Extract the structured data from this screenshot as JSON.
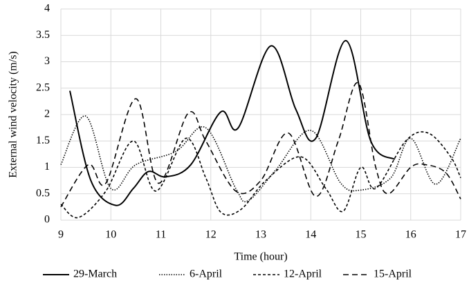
{
  "chart_data": {
    "type": "line",
    "xlabel": "Time (hour)",
    "ylabel": "External wind velocity (m/s)",
    "xlim": [
      9,
      17
    ],
    "xticks": [
      9,
      10,
      11,
      12,
      13,
      14,
      15,
      16,
      17
    ],
    "ylim": [
      0,
      4
    ],
    "yticks": [
      0,
      0.5,
      1,
      1.5,
      2,
      2.5,
      3,
      3.5,
      4
    ],
    "grid": true,
    "legend": "bottom",
    "series": [
      {
        "name": "29-March",
        "color": "#000000",
        "dash": "solid",
        "x": [
          9.18,
          9.6,
          10.1,
          10.45,
          10.75,
          11.1,
          11.6,
          12.2,
          12.55,
          13.2,
          13.7,
          14.1,
          14.7,
          15.2,
          15.68
        ],
        "values": [
          2.45,
          0.75,
          0.28,
          0.6,
          0.92,
          0.82,
          1.05,
          2.05,
          1.75,
          3.3,
          2.1,
          1.55,
          3.4,
          1.5,
          1.15
        ]
      },
      {
        "name": "6-April",
        "color": "#000000",
        "dash": "dotted",
        "x": [
          9,
          9.5,
          10.0,
          10.5,
          11.3,
          11.9,
          12.5,
          12.75,
          13.3,
          14.0,
          14.6,
          15.0,
          15.6,
          16.0,
          16.5,
          17.0
        ],
        "values": [
          1.05,
          1.97,
          0.6,
          1.05,
          1.3,
          1.75,
          0.6,
          0.37,
          0.95,
          1.7,
          0.7,
          0.57,
          0.8,
          1.55,
          0.68,
          1.55
        ]
      },
      {
        "name": "12-April",
        "color": "#000000",
        "dash": "dashed",
        "x": [
          9,
          9.35,
          9.9,
          10.45,
          10.9,
          11.5,
          11.9,
          12.2,
          12.6,
          13.1,
          13.8,
          14.3,
          14.65,
          15.0,
          15.3,
          15.9,
          16.35,
          16.8,
          17.0
        ],
        "values": [
          0.3,
          0.05,
          0.55,
          1.5,
          0.55,
          1.55,
          0.8,
          0.15,
          0.2,
          0.75,
          1.2,
          0.6,
          0.17,
          1.0,
          0.6,
          1.5,
          1.65,
          1.2,
          0.8
        ]
      },
      {
        "name": "15-April",
        "color": "#000000",
        "dash": "long-dashed",
        "x": [
          9,
          9.55,
          9.9,
          10.5,
          10.95,
          11.55,
          11.9,
          12.5,
          13.0,
          13.55,
          14.1,
          14.55,
          14.95,
          15.3,
          15.55,
          16.0,
          16.3,
          16.7,
          17.0
        ],
        "values": [
          0.25,
          1.05,
          0.7,
          2.3,
          0.7,
          2.03,
          1.5,
          0.55,
          0.75,
          1.65,
          0.45,
          1.5,
          2.6,
          1.0,
          0.5,
          1.0,
          1.05,
          0.9,
          0.4
        ]
      }
    ]
  }
}
